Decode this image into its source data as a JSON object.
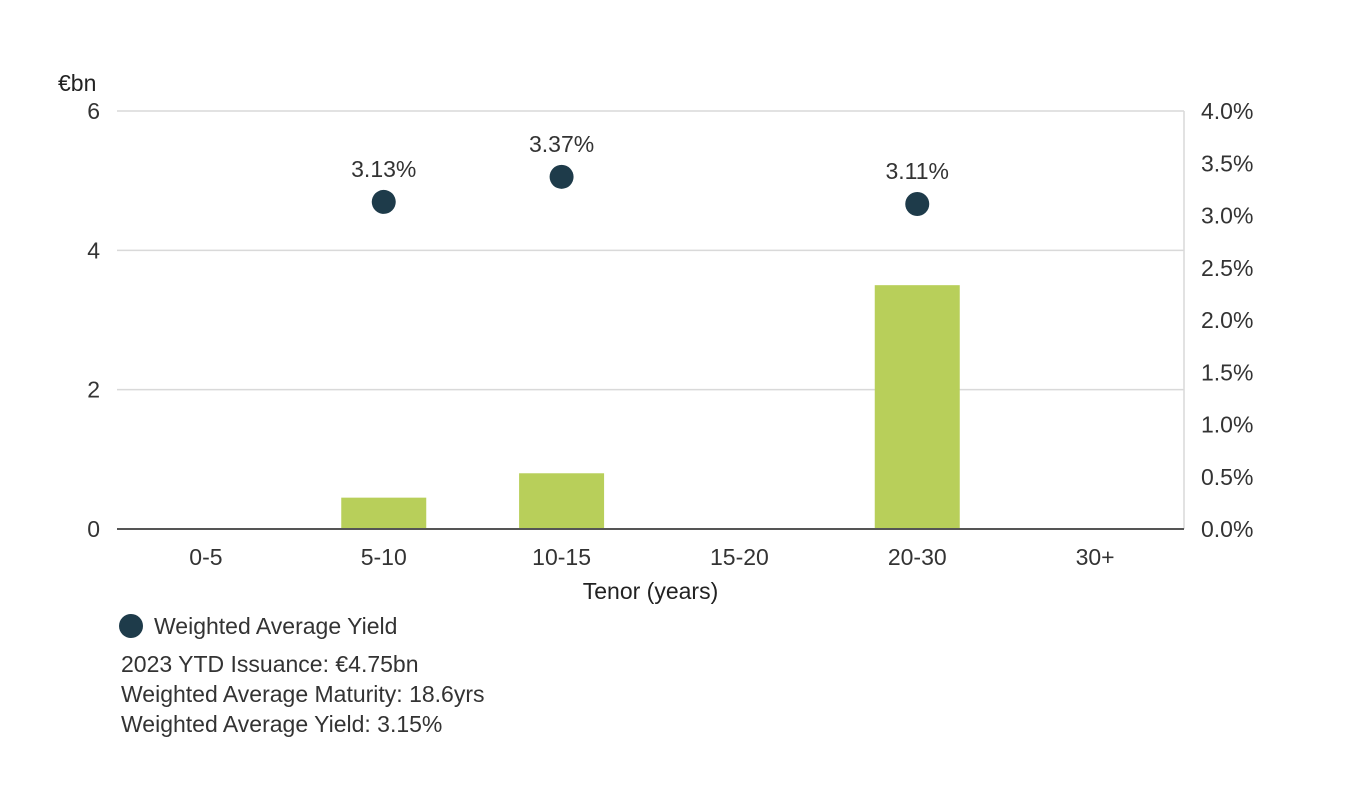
{
  "colors": {
    "bar": "#b8cf5a",
    "dot": "#1e3b4a",
    "grid": "#d9d9d9",
    "axis": "#555555",
    "text": "#333333"
  },
  "chart_data": {
    "type": "bar",
    "categories": [
      "0-5",
      "5-10",
      "10-15",
      "15-20",
      "20-30",
      "30+"
    ],
    "series": [
      {
        "type": "bar",
        "axis": "left",
        "values": [
          0,
          0.45,
          0.8,
          0,
          3.5,
          0
        ]
      },
      {
        "name": "Weighted Average Yield",
        "type": "scatter",
        "axis": "right",
        "values": [
          null,
          3.13,
          3.37,
          null,
          3.11,
          null
        ],
        "labels": [
          null,
          "3.13%",
          "3.37%",
          null,
          "3.11%",
          null
        ]
      }
    ],
    "xlabel": "Tenor (years)",
    "ylabel": "€bn",
    "ylim": [
      0,
      6
    ],
    "yticks": [
      "0",
      "2",
      "4",
      "6"
    ],
    "y2lim": [
      0,
      4.0
    ],
    "y2ticks": [
      "0.0%",
      "0.5%",
      "1.0%",
      "1.5%",
      "2.0%",
      "2.5%",
      "3.0%",
      "3.5%",
      "4.0%"
    ],
    "grid": true,
    "legend": "bottom-left"
  },
  "notes": {
    "issuance": "2023 YTD Issuance: €4.75bn",
    "maturity": "Weighted Average Maturity: 18.6yrs",
    "yield": "Weighted Average Yield: 3.15%"
  }
}
